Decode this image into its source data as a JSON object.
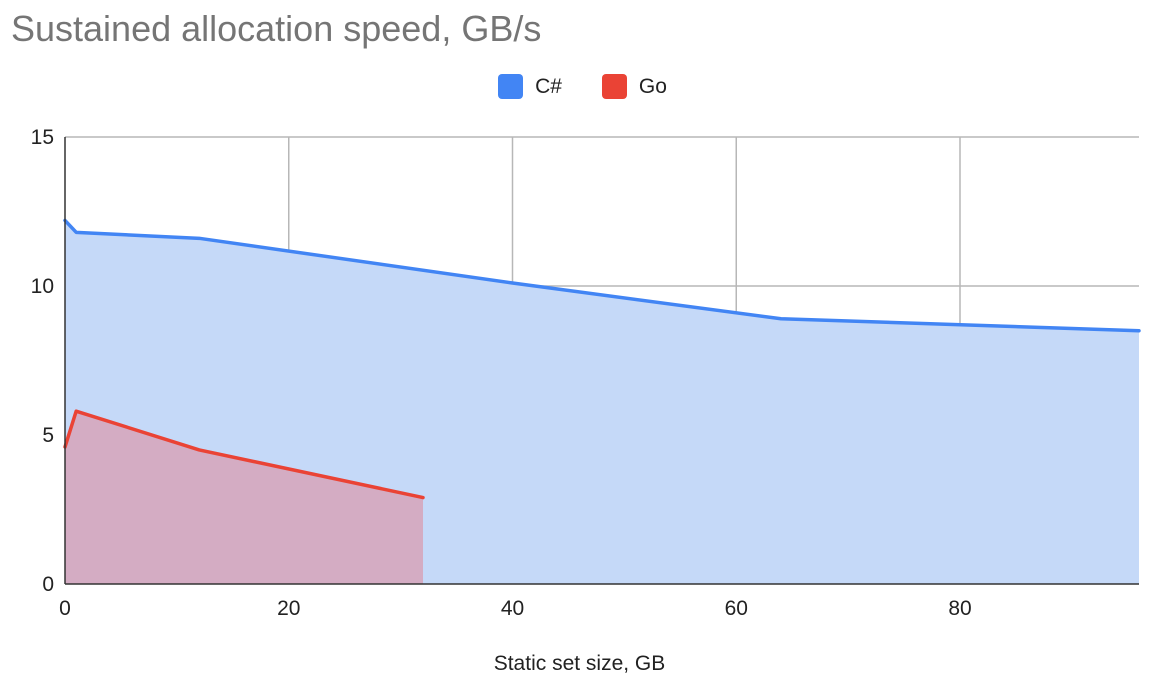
{
  "chart_data": {
    "type": "area",
    "title": "Sustained allocation speed, GB/s",
    "xlabel": "Static set size, GB",
    "ylabel": "",
    "xlim": [
      0,
      96
    ],
    "ylim": [
      0,
      15
    ],
    "x_ticks": [
      0,
      20,
      40,
      60,
      80
    ],
    "y_ticks": [
      0,
      5,
      10,
      15
    ],
    "grid": true,
    "legend_position": "top",
    "series": [
      {
        "name": "C#",
        "color": "#4285f4",
        "fill_color": "#c5d9f8",
        "points": [
          [
            0,
            12.2
          ],
          [
            1,
            11.8
          ],
          [
            12,
            11.6
          ],
          [
            40,
            10.1
          ],
          [
            64,
            8.9
          ],
          [
            96,
            8.5
          ]
        ]
      },
      {
        "name": "Go",
        "color": "#ea4335",
        "fill_color": "#d5a6bd",
        "points": [
          [
            0,
            4.6
          ],
          [
            1,
            5.8
          ],
          [
            12,
            4.5
          ],
          [
            32,
            2.9
          ]
        ]
      }
    ]
  }
}
